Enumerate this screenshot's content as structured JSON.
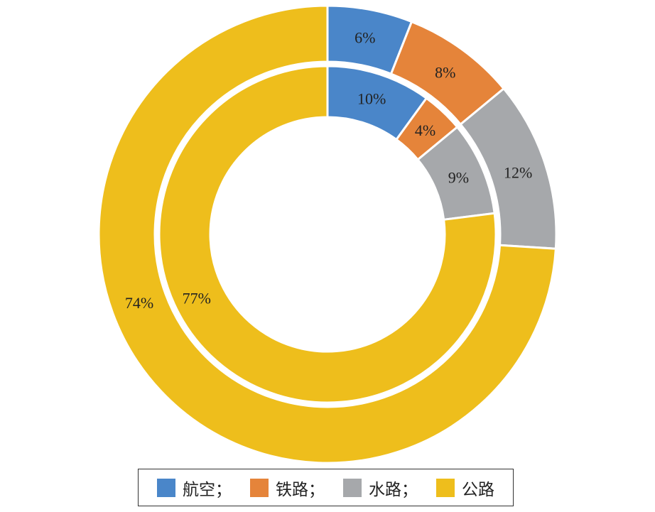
{
  "chart_data": {
    "type": "pie",
    "rings": [
      {
        "name": "",
        "values": [
          6,
          8,
          12,
          74
        ],
        "labels": [
          "6%",
          "8%",
          "12%",
          "74%"
        ]
      },
      {
        "name": "",
        "values": [
          10,
          4,
          9,
          77
        ],
        "labels": [
          "10%",
          "4%",
          "9%",
          "77%"
        ]
      }
    ],
    "categories": [
      "航空",
      "铁路",
      "水路",
      "公路"
    ],
    "colors": [
      "#4A86C9",
      "#E5843A",
      "#A6A8AB",
      "#EEBE1C"
    ],
    "legend": {
      "placement": "bottom",
      "entries": [
        "航空；",
        "铁路；",
        "水路；",
        "公路"
      ]
    }
  }
}
